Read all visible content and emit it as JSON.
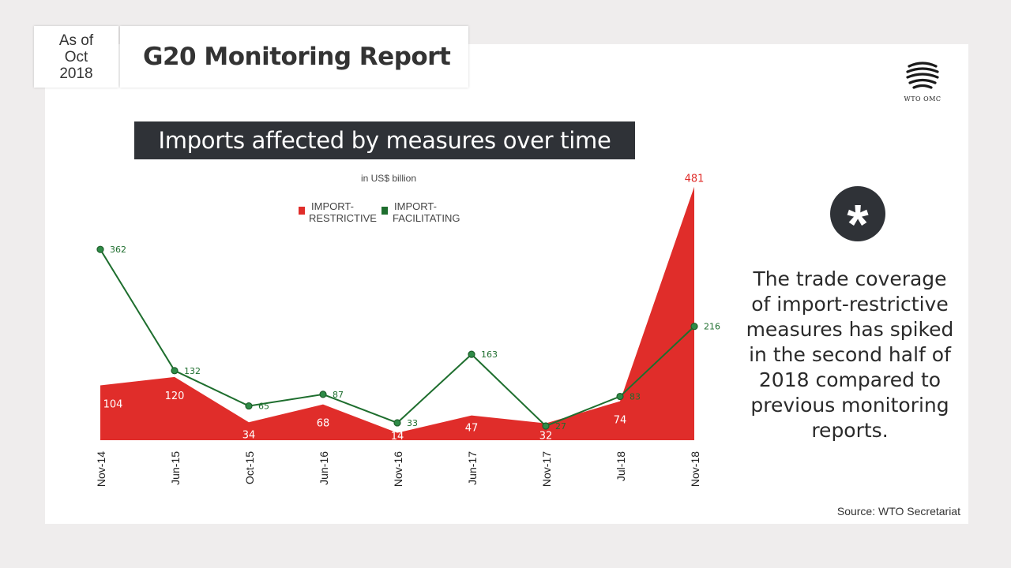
{
  "header": {
    "as_of": "As of",
    "month": "Oct",
    "year": "2018",
    "title": "G20 Monitoring Report"
  },
  "logo": {
    "text": "WTO OMC",
    "icon": "wto-globe-icon"
  },
  "chart_title": "Imports affected by measures over time",
  "annotation": {
    "icon": "asterisk-icon",
    "text": "The trade coverage of import-restrictive measures has spiked in the second half of 2018 compared to previous monitoring reports."
  },
  "source": "Source: WTO Secretariat",
  "colors": {
    "restrictive": "#e02d2a",
    "facilitating": "#1e6e2e",
    "dark": "#2f3237"
  },
  "chart_data": {
    "type": "area",
    "title": "Imports affected by measures over time",
    "unit_label": "in US$ billion",
    "categories": [
      "Nov-14",
      "Jun-15",
      "Oct-15",
      "Jun-16",
      "Nov-16",
      "Jun-17",
      "Nov-17",
      "Jul-18",
      "Nov-18"
    ],
    "legend_position": "top-center",
    "legend": [
      {
        "line1": "IMPORT-",
        "line2": "RESTRICTIVE"
      },
      {
        "line1": "IMPORT-",
        "line2": "FACILITATING"
      }
    ],
    "series": [
      {
        "name": "IMPORT-RESTRICTIVE",
        "type": "area",
        "values": [
          104,
          120,
          34,
          68,
          14,
          47,
          32,
          74,
          481
        ]
      },
      {
        "name": "IMPORT-FACILITATING",
        "type": "line",
        "values": [
          362,
          132,
          65,
          87,
          33,
          163,
          27,
          83,
          216
        ]
      }
    ],
    "ylim": [
      0,
      481
    ],
    "grid": false
  }
}
